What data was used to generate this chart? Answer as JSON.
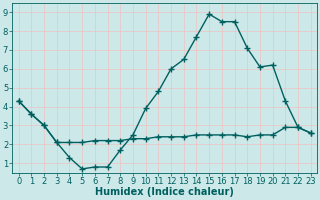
{
  "title": "",
  "xlabel": "Humidex (Indice chaleur)",
  "ylabel": "",
  "background_color": "#cce8e8",
  "grid_color": "#e8c8c8",
  "line_color": "#006060",
  "xlim": [
    -0.5,
    23.5
  ],
  "ylim": [
    0.5,
    9.5
  ],
  "xticks": [
    0,
    1,
    2,
    3,
    4,
    5,
    6,
    7,
    8,
    9,
    10,
    11,
    12,
    13,
    14,
    15,
    16,
    17,
    18,
    19,
    20,
    21,
    22,
    23
  ],
  "yticks": [
    1,
    2,
    3,
    4,
    5,
    6,
    7,
    8,
    9
  ],
  "series1_x": [
    0,
    1,
    2,
    3,
    4,
    5,
    6,
    7,
    8,
    9,
    10,
    11,
    12,
    13,
    14,
    15,
    16,
    17,
    18,
    19,
    20,
    21,
    22,
    23
  ],
  "series1_y": [
    4.3,
    3.6,
    3.0,
    2.1,
    1.3,
    0.7,
    0.8,
    0.8,
    1.7,
    2.5,
    3.9,
    4.8,
    6.0,
    6.5,
    7.7,
    8.9,
    8.5,
    8.5,
    7.1,
    6.1,
    6.2,
    4.3,
    2.9,
    2.6
  ],
  "series2_x": [
    0,
    1,
    2,
    3,
    4,
    5,
    6,
    7,
    8,
    9,
    10,
    11,
    12,
    13,
    14,
    15,
    16,
    17,
    18,
    19,
    20,
    21,
    22,
    23
  ],
  "series2_y": [
    4.3,
    3.6,
    3.0,
    2.1,
    2.1,
    2.1,
    2.2,
    2.2,
    2.2,
    2.3,
    2.3,
    2.4,
    2.4,
    2.4,
    2.5,
    2.5,
    2.5,
    2.5,
    2.4,
    2.5,
    2.5,
    2.9,
    2.9,
    2.6
  ],
  "marker": "+",
  "markersize": 4,
  "linewidth": 1.0,
  "xlabel_fontsize": 7,
  "tick_fontsize": 6,
  "ylabel_fontsize": 6
}
